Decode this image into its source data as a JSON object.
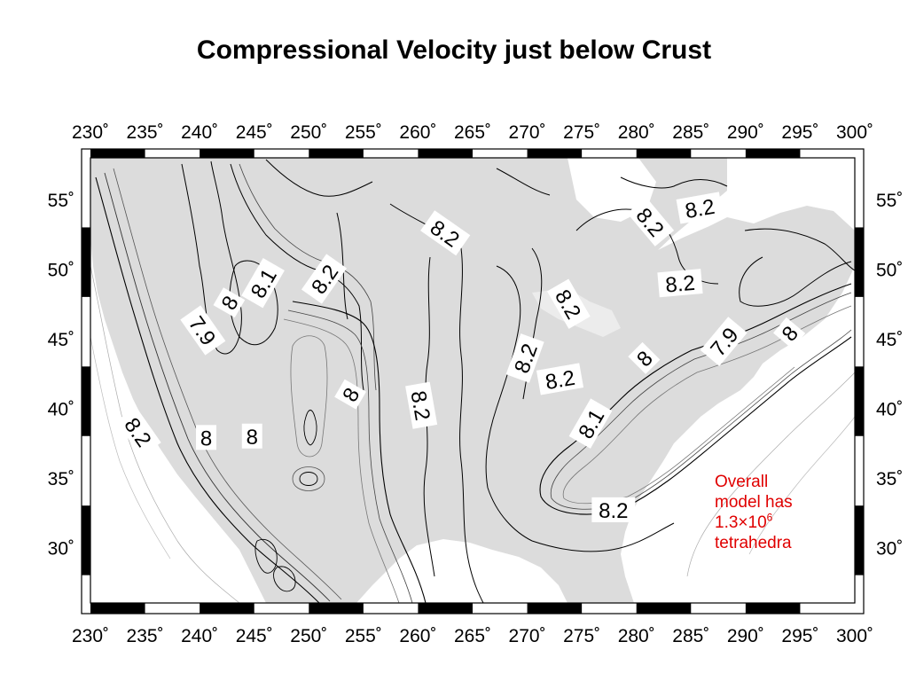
{
  "title": "Compressional Velocity just below Crust",
  "map": {
    "longitude_ticks": [
      "230˚",
      "235˚",
      "240˚",
      "245˚",
      "250˚",
      "255˚",
      "260˚",
      "265˚",
      "270˚",
      "275˚",
      "280˚",
      "285˚",
      "290˚",
      "295˚",
      "300˚"
    ],
    "latitude_ticks": [
      "55˚",
      "50˚",
      "45˚",
      "40˚",
      "35˚",
      "30˚"
    ],
    "lon_range": [
      230,
      300
    ],
    "lat_range": [
      26,
      58
    ],
    "land_color": "#dcdcdc",
    "ocean_color": "#ffffff",
    "contour_color": "#000000",
    "contour_labels": [
      {
        "text": "8.2",
        "lon": 262.5,
        "lat": 52.6,
        "angle": 35
      },
      {
        "text": "8.2",
        "lon": 251.4,
        "lat": 49.3,
        "angle": -55
      },
      {
        "text": "8.1",
        "lon": 245.8,
        "lat": 49.0,
        "angle": -60
      },
      {
        "text": "8",
        "lon": 242.7,
        "lat": 47.6,
        "angle": -60
      },
      {
        "text": "7.9",
        "lon": 240.3,
        "lat": 45.6,
        "angle": 55
      },
      {
        "text": "8.2",
        "lon": 273.8,
        "lat": 47.5,
        "angle": 60
      },
      {
        "text": "8.2",
        "lon": 281.3,
        "lat": 53.4,
        "angle": 50
      },
      {
        "text": "8.2",
        "lon": 285.8,
        "lat": 54.4,
        "angle": -10
      },
      {
        "text": "8.2",
        "lon": 284.0,
        "lat": 49.0,
        "angle": -5
      },
      {
        "text": "8.2",
        "lon": 269.8,
        "lat": 43.6,
        "angle": -70
      },
      {
        "text": "8.2",
        "lon": 273.0,
        "lat": 42.1,
        "angle": -10
      },
      {
        "text": "8",
        "lon": 280.7,
        "lat": 43.6,
        "angle": -45
      },
      {
        "text": "7.9",
        "lon": 288.0,
        "lat": 44.8,
        "angle": -50
      },
      {
        "text": "8",
        "lon": 294.0,
        "lat": 45.4,
        "angle": -50
      },
      {
        "text": "8",
        "lon": 253.8,
        "lat": 41.0,
        "angle": -60
      },
      {
        "text": "8.2",
        "lon": 260.3,
        "lat": 40.2,
        "angle": 80
      },
      {
        "text": "8.1",
        "lon": 275.8,
        "lat": 38.9,
        "angle": -60
      },
      {
        "text": "8.2",
        "lon": 234.4,
        "lat": 38.3,
        "angle": 55
      },
      {
        "text": "8",
        "lon": 240.6,
        "lat": 37.9,
        "angle": 0
      },
      {
        "text": "8",
        "lon": 244.8,
        "lat": 38.0,
        "angle": 0
      },
      {
        "text": "8.2",
        "lon": 277.9,
        "lat": 32.7,
        "angle": 0
      }
    ]
  },
  "annotation": {
    "line1": "Overall",
    "line2": "model has",
    "line3_base": "1.3×10",
    "line3_exp": "6",
    "line4": "tetrahedra"
  }
}
